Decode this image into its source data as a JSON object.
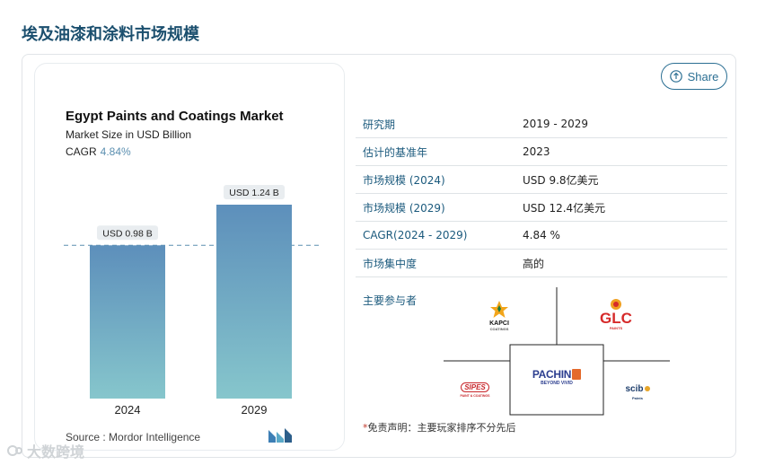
{
  "page": {
    "title": "埃及油漆和涂料市场规模"
  },
  "share": {
    "label": "Share",
    "icon": "share-icon"
  },
  "chart_data": {
    "type": "bar",
    "title": "Egypt Paints and Coatings Market",
    "subtitle": "Market Size in USD Billion",
    "cagr_label": "CAGR",
    "cagr_value": "4.84%",
    "categories": [
      "2024",
      "2029"
    ],
    "values": [
      0.98,
      1.24
    ],
    "data_labels": [
      "USD 0.98 B",
      "USD 1.24 B"
    ],
    "ylim": [
      0,
      1.24
    ],
    "colors": {
      "bar_top": "#5d8fbb",
      "bar_bottom": "#86c6cc",
      "ref_line": "#5b8fb0"
    }
  },
  "source": {
    "label": "Source :",
    "value": "Mordor Intelligence",
    "logo_icon": "mordor-intelligence-logo"
  },
  "info": {
    "rows": [
      {
        "key": "研究期",
        "value": "2019 - 2029"
      },
      {
        "key": "估计的基准年",
        "value": "2023"
      },
      {
        "key": "市场规模 (2024)",
        "value": "USD 9.8亿美元"
      },
      {
        "key": "市场规模 (2029)",
        "value": "USD 12.4亿美元"
      },
      {
        "key": "CAGR(2024 - 2029)",
        "value": "4.84 %"
      },
      {
        "key": "市场集中度",
        "value": "高的"
      }
    ]
  },
  "players": {
    "label": "主要参与者",
    "logos": {
      "kapci": {
        "name": "KAPCI",
        "tag": "COATINGS"
      },
      "glc": {
        "name": "GLC",
        "tag": "PAINTS"
      },
      "sipes": {
        "name": "SIPES",
        "tag": "PAINT & COATINGS"
      },
      "pachin": {
        "name": "PACHIN",
        "tag": "BEYOND VIVID"
      },
      "scib": {
        "name": "scib",
        "tag": "Paints"
      }
    }
  },
  "disclaimer": {
    "star": "*",
    "text": "免责声明：主要玩家排序不分先后"
  },
  "watermark": {
    "text": "大数跨境"
  }
}
